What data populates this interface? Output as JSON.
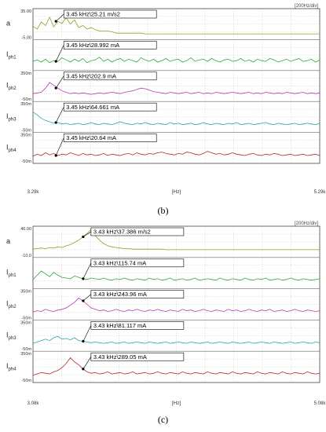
{
  "figure": {
    "captions": [
      "(b)",
      "(c)"
    ]
  },
  "chart_data": [
    {
      "type": "line",
      "caption": "(b)",
      "division_label": "[200Hz/div]",
      "xlabel": "[Hz]",
      "x_tick_labels": [
        "3.29k",
        "5.29k"
      ],
      "xlim": [
        3290,
        5290
      ],
      "grid": true,
      "panels": [
        {
          "name": "a",
          "sub": "",
          "color": "#9a9a2a",
          "y_ticks": [
            "35.00",
            "-5.00"
          ],
          "ylim": [
            -5,
            35
          ],
          "marker": {
            "x": 3450,
            "label": "3.45 kHz\\25.21 m/s2"
          },
          "values": [
            12,
            8,
            18,
            13,
            25,
            11,
            19,
            16,
            24,
            15,
            21,
            10,
            13,
            8,
            10,
            7,
            5,
            5,
            5,
            4,
            2,
            2,
            2,
            2,
            2,
            2,
            2,
            1,
            1,
            1,
            1,
            1,
            1,
            1,
            1,
            1,
            1,
            1,
            1,
            1,
            1,
            1,
            1,
            1,
            1,
            1,
            1,
            1,
            1,
            1,
            1,
            1,
            1,
            1,
            1,
            1,
            1,
            1,
            1,
            1,
            1,
            1,
            1,
            1,
            1,
            1,
            1,
            1,
            1,
            1
          ]
        },
        {
          "name": "I",
          "sub": "ph1",
          "color": "#33a833",
          "y_ticks": [],
          "ylim": [
            -50,
            350
          ],
          "marker": {
            "x": 3450,
            "label": "3.45 kHz\\28.992 mA"
          },
          "values": [
            60,
            80,
            50,
            90,
            40,
            70,
            60,
            110,
            80,
            50,
            90,
            60,
            100,
            40,
            70,
            80,
            120,
            60,
            90,
            50,
            80,
            100,
            60,
            90,
            70,
            50,
            110,
            80,
            60,
            90,
            50,
            70,
            100,
            60,
            80,
            90,
            50,
            70,
            110,
            60,
            80,
            90,
            60,
            100,
            70,
            50,
            80,
            90,
            60,
            70,
            100,
            60,
            80,
            50,
            90,
            70,
            60,
            100,
            80,
            50,
            70,
            90,
            60,
            80,
            100,
            60,
            70,
            90,
            50,
            80
          ]
        },
        {
          "name": "I",
          "sub": "ph2",
          "color": "#b23cb2",
          "y_ticks": [
            "350m",
            "-50m"
          ],
          "ylim": [
            -50,
            350
          ],
          "marker": {
            "x": 3450,
            "label": "3.45 kHz\\202.9 mA"
          },
          "values": [
            40,
            50,
            60,
            120,
            200,
            160,
            120,
            80,
            60,
            40,
            50,
            40,
            50,
            40,
            30,
            40,
            50,
            40,
            50,
            60,
            50,
            40,
            60,
            70,
            80,
            100,
            120,
            110,
            90,
            70,
            60,
            50,
            40,
            60,
            50,
            40,
            50,
            60,
            40,
            50,
            60,
            40,
            50,
            40,
            60,
            50,
            40,
            50,
            60,
            50,
            40,
            50,
            60,
            40,
            50,
            40,
            60,
            50,
            40,
            50,
            40,
            60,
            50,
            40,
            50,
            60,
            40,
            50,
            40,
            50
          ]
        },
        {
          "name": "I",
          "sub": "ph3",
          "color": "#2aa8a8",
          "y_ticks": [
            "350m",
            "-50m"
          ],
          "ylim": [
            -50,
            350
          ],
          "marker": {
            "x": 3450,
            "label": "3.45 kHz\\64.661 mA"
          },
          "values": [
            220,
            180,
            130,
            100,
            80,
            60,
            70,
            50,
            60,
            40,
            50,
            60,
            40,
            50,
            70,
            50,
            40,
            60,
            50,
            40,
            60,
            80,
            60,
            50,
            40,
            60,
            50,
            70,
            50,
            40,
            60,
            50,
            40,
            70,
            50,
            60,
            40,
            50,
            60,
            40,
            50,
            70,
            50,
            40,
            60,
            50,
            40,
            60,
            50,
            70,
            40,
            50,
            60,
            40,
            50,
            60,
            70,
            50,
            40,
            60,
            50,
            40,
            50,
            60,
            40,
            50,
            60,
            50,
            40,
            60
          ]
        },
        {
          "name": "I",
          "sub": "ph4",
          "color": "#b22a2a",
          "y_ticks": [
            "350m",
            "-50m"
          ],
          "ylim": [
            -50,
            350
          ],
          "marker": {
            "x": 3450,
            "label": "3.45 kHz\\20.64 mA"
          },
          "values": [
            30,
            60,
            40,
            80,
            50,
            70,
            40,
            60,
            50,
            80,
            60,
            40,
            70,
            50,
            60,
            40,
            50,
            70,
            40,
            60,
            50,
            40,
            60,
            70,
            50,
            80,
            60,
            50,
            70,
            60,
            80,
            90,
            70,
            60,
            50,
            70,
            60,
            90,
            80,
            60,
            50,
            70,
            100,
            80,
            60,
            70,
            50,
            60,
            80,
            60,
            50,
            40,
            60,
            70,
            50,
            40,
            60,
            50,
            70,
            60,
            40,
            50,
            60,
            40,
            50,
            60,
            40,
            50,
            60,
            40
          ]
        }
      ]
    },
    {
      "type": "line",
      "caption": "(c)",
      "division_label": "[200Hz/div]",
      "xlabel": "[Hz]",
      "x_tick_labels": [
        "3.08k",
        "5.08k"
      ],
      "xlim": [
        3080,
        5080
      ],
      "grid": true,
      "panels": [
        {
          "name": "a",
          "sub": "",
          "color": "#9a9a2a",
          "y_ticks": [
            "40.00",
            "-10.0"
          ],
          "ylim": [
            -10,
            40
          ],
          "marker": {
            "x": 3430,
            "label": "3.43 kHz\\37.386 m/s2"
          },
          "values": [
            2,
            3,
            4,
            3,
            5,
            4,
            6,
            5,
            8,
            10,
            14,
            18,
            24,
            30,
            37,
            26,
            18,
            12,
            8,
            6,
            5,
            4,
            3,
            3,
            2,
            2,
            2,
            2,
            2,
            2,
            2,
            2,
            1,
            1,
            1,
            1,
            1,
            1,
            1,
            1,
            1,
            1,
            1,
            1,
            1,
            1,
            1,
            1,
            1,
            1,
            1,
            1,
            1,
            1,
            1,
            1,
            1,
            1,
            1,
            1,
            1,
            1,
            1,
            1,
            1,
            1,
            1,
            1,
            1,
            1
          ]
        },
        {
          "name": "I",
          "sub": "ph1",
          "color": "#33a833",
          "y_ticks": [],
          "ylim": [
            -50,
            350
          ],
          "marker": {
            "x": 3430,
            "label": "3.43 kHz\\115.74 mA"
          },
          "values": [
            60,
            120,
            180,
            140,
            100,
            160,
            120,
            90,
            80,
            70,
            110,
            90,
            70,
            60,
            80,
            70,
            60,
            80,
            60,
            50,
            70,
            60,
            80,
            60,
            50,
            70,
            60,
            50,
            80,
            60,
            70,
            50,
            60,
            80,
            50,
            60,
            70,
            50,
            60,
            80,
            50,
            60,
            70,
            60,
            50,
            80,
            60,
            50,
            70,
            60,
            50,
            80,
            60,
            50,
            70,
            60,
            80,
            50,
            60,
            70,
            50,
            60,
            80,
            60,
            50,
            70,
            60,
            50,
            60,
            70
          ]
        },
        {
          "name": "I",
          "sub": "ph2",
          "color": "#b23cb2",
          "y_ticks": [
            "350m",
            "-50m"
          ],
          "ylim": [
            -50,
            350
          ],
          "marker": {
            "x": 3430,
            "label": "3.43 kHz\\243.96 mA"
          },
          "values": [
            40,
            60,
            50,
            80,
            60,
            50,
            70,
            80,
            100,
            140,
            180,
            240,
            200,
            150,
            100,
            80,
            60,
            70,
            50,
            60,
            80,
            60,
            50,
            70,
            60,
            80,
            60,
            50,
            70,
            60,
            80,
            60,
            50,
            70,
            60,
            50,
            80,
            60,
            70,
            50,
            60,
            80,
            60,
            50,
            70,
            60,
            50,
            80,
            60,
            70,
            50,
            60,
            80,
            60,
            50,
            70,
            60,
            80,
            50,
            60,
            70,
            50,
            60,
            80,
            60,
            50,
            70,
            60,
            50,
            60
          ]
        },
        {
          "name": "I",
          "sub": "ph3",
          "color": "#2aa8a8",
          "y_ticks": [
            "350m",
            "-50m"
          ],
          "ylim": [
            -50,
            350
          ],
          "marker": {
            "x": 3430,
            "label": "3.43 kHz\\81.117 mA"
          },
          "values": [
            40,
            60,
            80,
            100,
            80,
            120,
            140,
            100,
            110,
            90,
            120,
            80,
            70,
            60,
            50,
            60,
            50,
            40,
            50,
            60,
            40,
            50,
            60,
            40,
            50,
            60,
            50,
            40,
            60,
            50,
            40,
            50,
            60,
            40,
            50,
            60,
            50,
            40,
            60,
            50,
            40,
            50,
            60,
            40,
            50,
            60,
            50,
            40,
            60,
            50,
            40,
            50,
            60,
            40,
            50,
            60,
            50,
            40,
            60,
            50,
            40,
            50,
            60,
            40,
            50,
            60,
            50,
            40,
            60,
            50
          ]
        },
        {
          "name": "I",
          "sub": "ph4",
          "color": "#b22a2a",
          "y_ticks": [
            "350m",
            "-50m"
          ],
          "ylim": [
            -50,
            350
          ],
          "marker": {
            "x": 3430,
            "label": "3.43 kHz\\289.05 mA"
          },
          "values": [
            30,
            50,
            70,
            60,
            50,
            80,
            100,
            140,
            200,
            280,
            220,
            180,
            120,
            80,
            60,
            70,
            50,
            60,
            80,
            50,
            60,
            70,
            50,
            60,
            80,
            50,
            60,
            70,
            50,
            60,
            80,
            60,
            50,
            70,
            60,
            50,
            80,
            60,
            50,
            70,
            60,
            50,
            80,
            60,
            50,
            70,
            60,
            50,
            80,
            60,
            50,
            70,
            60,
            50,
            80,
            60,
            50,
            70,
            60,
            50,
            80,
            60,
            50,
            70,
            60,
            50,
            80,
            60,
            50,
            60
          ]
        }
      ]
    }
  ]
}
